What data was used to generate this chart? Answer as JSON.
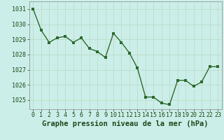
{
  "x": [
    0,
    1,
    2,
    3,
    4,
    5,
    6,
    7,
    8,
    9,
    10,
    11,
    12,
    13,
    14,
    15,
    16,
    17,
    18,
    19,
    20,
    21,
    22,
    23
  ],
  "y": [
    1031.0,
    1029.6,
    1028.8,
    1029.1,
    1029.2,
    1028.8,
    1029.1,
    1028.4,
    1028.2,
    1027.8,
    1029.4,
    1028.8,
    1028.1,
    1027.1,
    1025.2,
    1025.2,
    1024.8,
    1024.7,
    1026.3,
    1026.3,
    1025.9,
    1026.2,
    1027.2,
    1027.2
  ],
  "line_color": "#2d6a2d",
  "marker_color": "#2d6a2d",
  "bg_color": "#cceee8",
  "grid_color": "#bbddcc",
  "xlabel": "Graphe pression niveau de la mer (hPa)",
  "xlabel_color": "#1a4a1a",
  "ylim_min": 1024.4,
  "ylim_max": 1031.5,
  "yticks": [
    1025,
    1026,
    1027,
    1028,
    1029,
    1030,
    1031
  ],
  "xticks": [
    0,
    1,
    2,
    3,
    4,
    5,
    6,
    7,
    8,
    9,
    10,
    11,
    12,
    13,
    14,
    15,
    16,
    17,
    18,
    19,
    20,
    21,
    22,
    23
  ],
  "tick_label_fontsize": 6.0,
  "xlabel_fontsize": 7.5,
  "line_width": 1.0,
  "marker_size": 2.8
}
